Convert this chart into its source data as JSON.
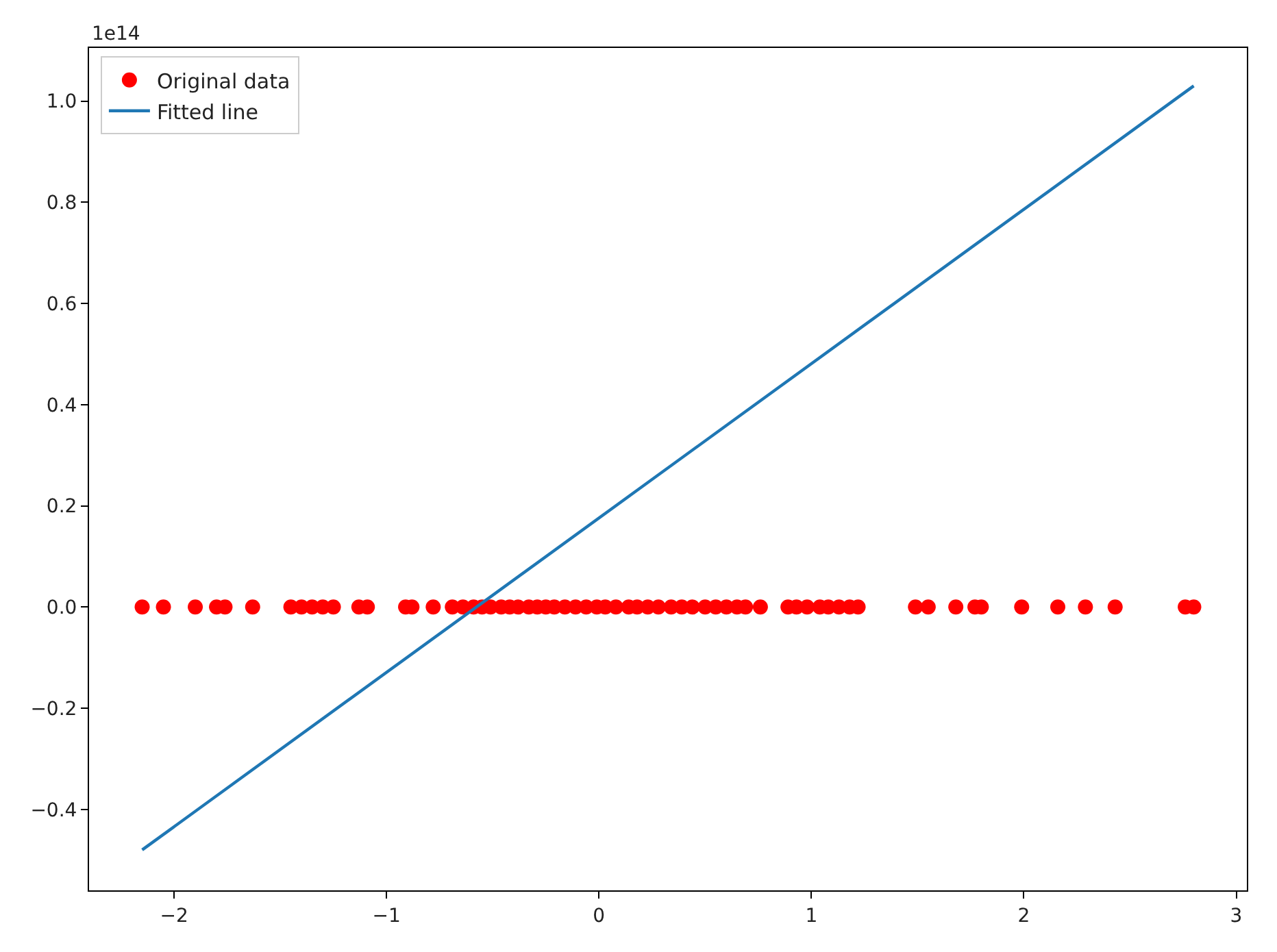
{
  "chart_data": {
    "type": "scatter",
    "annotations": [
      "1e14"
    ],
    "xlim": [
      -2.4,
      3.05
    ],
    "ylim": [
      -0.56,
      1.105
    ],
    "xticks": [
      {
        "value": -2,
        "label": "−2"
      },
      {
        "value": -1,
        "label": "−1"
      },
      0,
      1,
      2,
      3
    ],
    "yticks": [
      {
        "value": -0.4,
        "label": "−0.4"
      },
      {
        "value": -0.2,
        "label": "−0.2"
      },
      {
        "value": 0,
        "label": "0.0"
      },
      0.2,
      0.4,
      0.6,
      0.8,
      {
        "value": 1,
        "label": "1.0"
      }
    ],
    "legend": "top left",
    "series": [
      {
        "name": "Original data",
        "marker": "circle",
        "color": "#ff0000",
        "x": [
          -2.15,
          -2.05,
          -1.9,
          -1.8,
          -1.76,
          -1.63,
          -1.45,
          -1.4,
          -1.35,
          -1.3,
          -1.25,
          -1.13,
          -1.09,
          -0.91,
          -0.88,
          -0.78,
          -0.69,
          -0.64,
          -0.59,
          -0.55,
          -0.51,
          -0.46,
          -0.42,
          -0.38,
          -0.33,
          -0.29,
          -0.25,
          -0.21,
          -0.16,
          -0.11,
          -0.06,
          -0.01,
          0.03,
          0.08,
          0.14,
          0.18,
          0.23,
          0.28,
          0.34,
          0.39,
          0.44,
          0.5,
          0.55,
          0.6,
          0.65,
          0.69,
          0.76,
          0.89,
          0.93,
          0.98,
          1.04,
          1.08,
          1.13,
          1.18,
          1.22,
          1.49,
          1.55,
          1.68,
          1.77,
          1.8,
          1.99,
          2.16,
          2.29,
          2.43,
          2.76,
          2.8
        ],
        "values": [
          0,
          0,
          0,
          0,
          0,
          0,
          0,
          0,
          0,
          0,
          0,
          0,
          0,
          0,
          0,
          0,
          0,
          0,
          0,
          0,
          0,
          0,
          0,
          0,
          0,
          0,
          0,
          0,
          0,
          0,
          0,
          0,
          0,
          0,
          0,
          0,
          0,
          0,
          0,
          0,
          0,
          0,
          0,
          0,
          0,
          0,
          0,
          0,
          0,
          0,
          0,
          0,
          0,
          0,
          0,
          0,
          0,
          0,
          0,
          0,
          0,
          0,
          0,
          0,
          0,
          0
        ]
      },
      {
        "name": "Fitted line",
        "type": "line",
        "line_style": "solid",
        "color": "#1f77b4",
        "x": [
          -2.15,
          2.8
        ],
        "values": [
          -0.48,
          1.03
        ]
      }
    ]
  }
}
